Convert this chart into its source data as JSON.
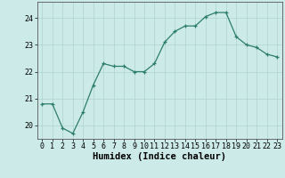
{
  "x": [
    0,
    1,
    2,
    3,
    4,
    5,
    6,
    7,
    8,
    9,
    10,
    11,
    12,
    13,
    14,
    15,
    16,
    17,
    18,
    19,
    20,
    21,
    22,
    23
  ],
  "y": [
    20.8,
    20.8,
    19.9,
    19.7,
    20.5,
    21.5,
    22.3,
    22.2,
    22.2,
    22.0,
    22.0,
    22.3,
    23.1,
    23.5,
    23.7,
    23.7,
    24.05,
    24.2,
    24.2,
    23.3,
    23.0,
    22.9,
    22.65,
    22.55
  ],
  "line_color": "#2d7d6e",
  "marker_color": "#2d7d6e",
  "bg_color": "#cceae8",
  "grid_color": "#afd4d1",
  "xlabel": "Humidex (Indice chaleur)",
  "ylim": [
    19.5,
    24.6
  ],
  "xlim": [
    -0.5,
    23.5
  ],
  "yticks": [
    20,
    21,
    22,
    23,
    24
  ],
  "tick_fontsize": 6.0,
  "xlabel_fontsize": 7.5
}
